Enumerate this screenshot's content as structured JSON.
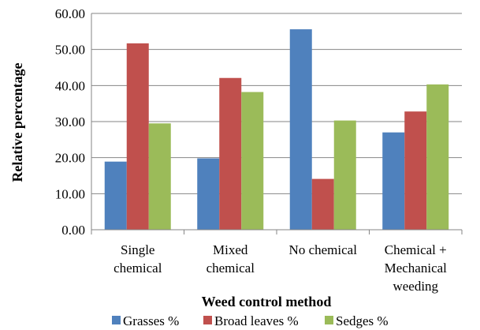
{
  "chart_data": {
    "type": "bar",
    "xlabel": "Weed control method",
    "ylabel": "Relative percentage",
    "ylim": [
      0,
      60
    ],
    "yticks": [
      "0.00",
      "10.00",
      "20.00",
      "30.00",
      "40.00",
      "50.00",
      "60.00"
    ],
    "grid": "horizontal",
    "legend_position": "bottom",
    "categories": [
      [
        "Single",
        "chemical"
      ],
      [
        "Mixed",
        "chemical"
      ],
      [
        "No chemical"
      ],
      [
        "Chemical +",
        "Mechanical",
        "weeding"
      ]
    ],
    "series": [
      {
        "name": "Grasses %",
        "color": "#4f81bd",
        "values": [
          18.9,
          19.8,
          55.6,
          27.0
        ]
      },
      {
        "name": "Broad leaves %",
        "color": "#c0504d",
        "values": [
          51.7,
          42.1,
          14.1,
          32.8
        ]
      },
      {
        "name": "Sedges %",
        "color": "#9bbb59",
        "values": [
          29.5,
          38.2,
          30.3,
          40.3
        ]
      }
    ]
  }
}
